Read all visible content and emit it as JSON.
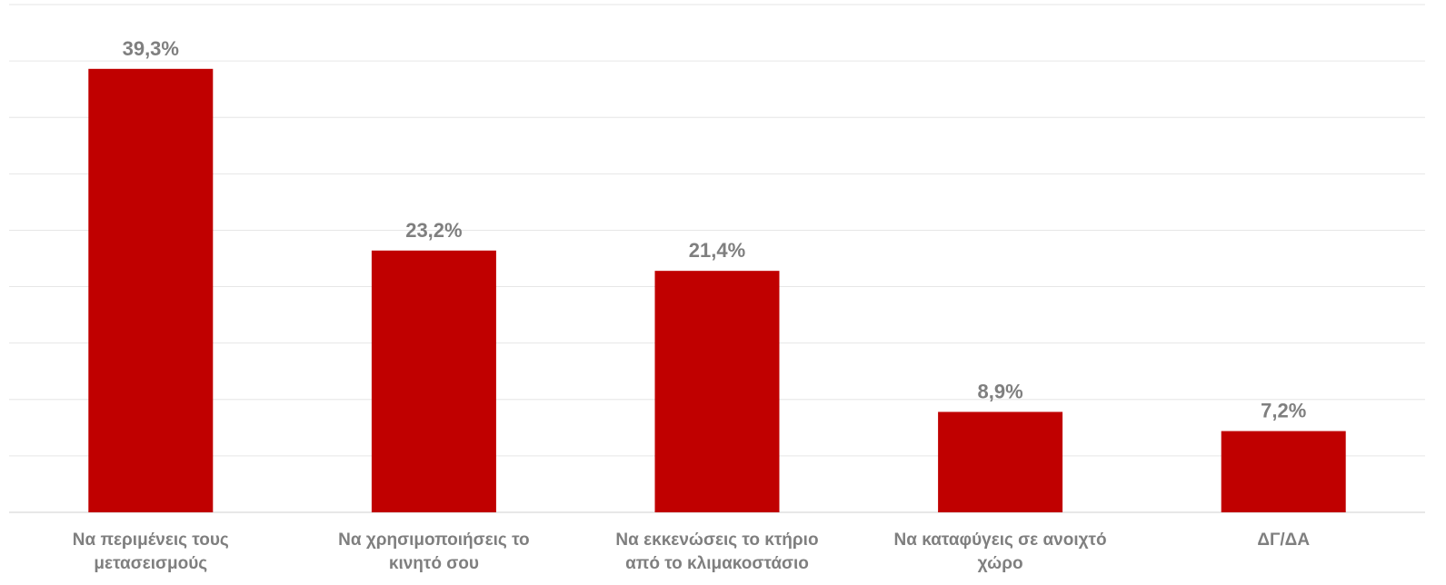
{
  "chart_data": {
    "type": "bar",
    "categories": [
      [
        "Να περιμένεις τους",
        "μετασεισμούς"
      ],
      [
        "Να χρησιμοποιήσεις το",
        "κινητό σου"
      ],
      [
        "Να εκκενώσεις το κτήριο",
        "από το κλιμακοστάσιο"
      ],
      [
        "Να καταφύγεις σε ανοιχτό",
        "χώρο"
      ],
      [
        "ΔΓ/ΔΑ"
      ]
    ],
    "values": [
      39.3,
      23.2,
      21.4,
      8.9,
      7.2
    ],
    "value_labels": [
      "39,3%",
      "23,2%",
      "21,4%",
      "8,9%",
      "7,2%"
    ],
    "title": "",
    "xlabel": "",
    "ylabel": "",
    "ylim": [
      0,
      45
    ],
    "grid": true,
    "legend": "none",
    "colors": {
      "bar": "#c00000",
      "label_text": "#7f7f7f",
      "grid": "#e6e6e6"
    }
  }
}
